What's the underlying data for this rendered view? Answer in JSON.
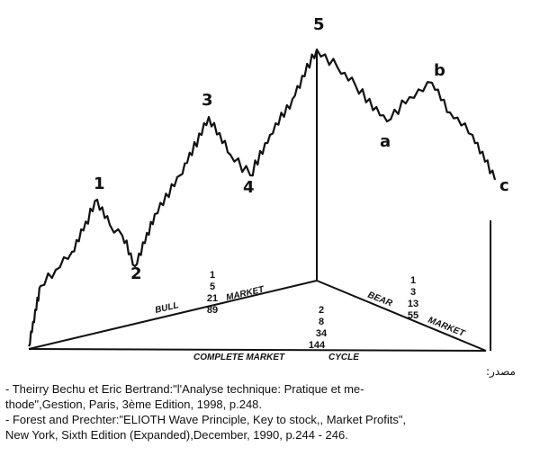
{
  "diagram": {
    "wave_labels": {
      "w1": "1",
      "w2": "2",
      "w3": "3",
      "w4": "4",
      "w5": "5",
      "wa": "a",
      "wb": "b",
      "wc": "c"
    },
    "bull_label": "BULL",
    "bull_market_label": "MARKET",
    "bear_label": "BEAR",
    "bear_market_label": "MARKET",
    "cycle_label": "COMPLETE MARKET",
    "cycle_label_2": "CYCLE",
    "bull_counts": [
      "1",
      "5",
      "21",
      "89"
    ],
    "bear_counts": [
      "1",
      "3",
      "13",
      "55"
    ],
    "cycle_counts": [
      "2",
      "8",
      "34",
      "144"
    ]
  },
  "source": {
    "title": "مصدر:",
    "line1": "- Theirry Bechu et Eric Bertrand:\"l'Analyse technique: Pratique et me-",
    "line2": "thode\",Gestion, Paris, 3ème Edition, 1998, p.248.",
    "line3": "- Forest and Prechter:\"ELIOTH Wave Principle, Key to stock,, Market Profits\",",
    "line4": "New York, Sixth Edition (Expanded),December, 1990, p.244 - 246."
  }
}
